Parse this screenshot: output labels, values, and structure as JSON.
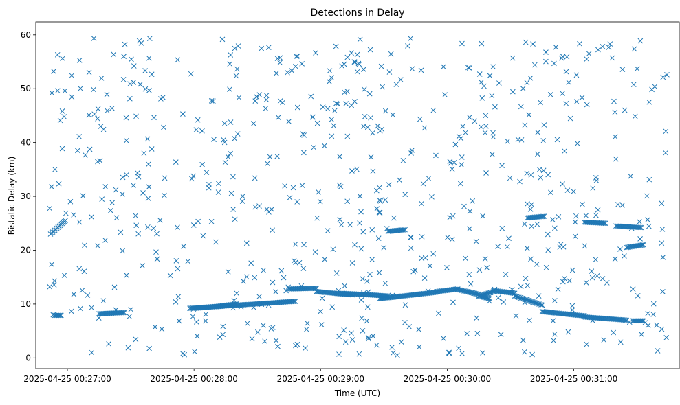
{
  "chart_data": {
    "type": "scatter",
    "title": "Detections in Delay",
    "xlabel": "Time (UTC)",
    "ylabel": "Bistatic Delay (km)",
    "marker": "x",
    "color": "#1f77b4",
    "grid": false,
    "xlim": [
      "2025-04-25 00:26:45",
      "2025-04-25 00:31:50"
    ],
    "ylim": [
      -2.0,
      62.4
    ],
    "x_ticks": [
      "2025-04-25 00:27:00",
      "2025-04-25 00:28:00",
      "2025-04-25 00:29:00",
      "2025-04-25 00:30:00",
      "2025-04-25 00:31:00"
    ],
    "y_ticks": [
      0,
      10,
      20,
      30,
      40,
      50,
      60
    ],
    "tracks": [
      {
        "times": [
          "2025-04-25 00:26:52",
          "2025-04-25 00:26:59"
        ],
        "delay": [
          23.0,
          25.5
        ]
      },
      {
        "times": [
          "2025-04-25 00:26:54",
          "2025-04-25 00:26:57"
        ],
        "delay": [
          7.9,
          7.9
        ]
      },
      {
        "times": [
          "2025-04-25 00:27:15",
          "2025-04-25 00:27:27"
        ],
        "delay": [
          8.2,
          8.4
        ]
      },
      {
        "times": [
          "2025-04-25 00:27:58",
          "2025-04-25 00:28:48"
        ],
        "delay": [
          9.2,
          10.5
        ]
      },
      {
        "times": [
          "2025-04-25 00:28:00",
          "2025-04-25 00:28:12"
        ],
        "delay": [
          9.2,
          9.6
        ]
      },
      {
        "times": [
          "2025-04-25 00:28:10",
          "2025-04-25 00:28:20"
        ],
        "delay": [
          9.5,
          10.0
        ]
      },
      {
        "times": [
          "2025-04-25 00:28:45",
          "2025-04-25 00:28:58"
        ],
        "delay": [
          12.8,
          12.9
        ]
      },
      {
        "times": [
          "2025-04-25 00:28:58",
          "2025-04-25 00:29:15"
        ],
        "delay": [
          12.3,
          11.7
        ]
      },
      {
        "times": [
          "2025-04-25 00:29:10",
          "2025-04-25 00:29:32"
        ],
        "delay": [
          12.0,
          11.5
        ]
      },
      {
        "times": [
          "2025-04-25 00:29:28",
          "2025-04-25 00:29:55"
        ],
        "delay": [
          11.0,
          12.2
        ]
      },
      {
        "times": [
          "2025-04-25 00:29:55",
          "2025-04-25 00:30:05"
        ],
        "delay": [
          12.3,
          12.8
        ]
      },
      {
        "times": [
          "2025-04-25 00:30:05",
          "2025-04-25 00:30:15"
        ],
        "delay": [
          12.7,
          11.8
        ]
      },
      {
        "times": [
          "2025-04-25 00:30:15",
          "2025-04-25 00:30:20"
        ],
        "delay": [
          11.5,
          11.0
        ]
      },
      {
        "times": [
          "2025-04-25 00:30:15",
          "2025-04-25 00:30:22"
        ],
        "delay": [
          11.5,
          12.3
        ]
      },
      {
        "times": [
          "2025-04-25 00:30:22",
          "2025-04-25 00:30:32"
        ],
        "delay": [
          12.5,
          12.0
        ]
      },
      {
        "times": [
          "2025-04-25 00:30:32",
          "2025-04-25 00:30:45"
        ],
        "delay": [
          11.5,
          9.8
        ]
      },
      {
        "times": [
          "2025-04-25 00:30:45",
          "2025-04-25 00:31:05"
        ],
        "delay": [
          8.6,
          7.8
        ]
      },
      {
        "times": [
          "2025-04-25 00:31:05",
          "2025-04-25 00:31:25"
        ],
        "delay": [
          7.6,
          7.0
        ]
      },
      {
        "times": [
          "2025-04-25 00:31:28",
          "2025-04-25 00:31:33"
        ],
        "delay": [
          6.9,
          6.9
        ]
      },
      {
        "times": [
          "2025-04-25 00:29:32",
          "2025-04-25 00:29:40"
        ],
        "delay": [
          23.5,
          23.8
        ]
      },
      {
        "times": [
          "2025-04-25 00:30:38",
          "2025-04-25 00:30:46"
        ],
        "delay": [
          26.0,
          26.3
        ]
      },
      {
        "times": [
          "2025-04-25 00:31:05",
          "2025-04-25 00:31:15"
        ],
        "delay": [
          25.2,
          25.0
        ]
      },
      {
        "times": [
          "2025-04-25 00:31:20",
          "2025-04-25 00:31:32"
        ],
        "delay": [
          24.5,
          24.2
        ]
      },
      {
        "times": [
          "2025-04-25 00:31:25",
          "2025-04-25 00:31:33"
        ],
        "delay": [
          20.5,
          21.0
        ]
      }
    ]
  }
}
